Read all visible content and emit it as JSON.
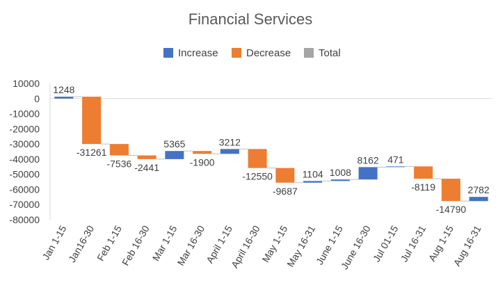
{
  "chart_data": {
    "type": "waterfall",
    "title": "Financial Services",
    "legend": [
      "Increase",
      "Decrease",
      "Total"
    ],
    "legend_position": "top",
    "colors": {
      "increase": "#4472C4",
      "decrease": "#ED7D31",
      "total": "#A5A5A5",
      "axis": "#D9D9D9",
      "text": "#404040",
      "title": "#595959"
    },
    "ylim": [
      -80000,
      10000
    ],
    "yticks": [
      10000,
      0,
      -10000,
      -20000,
      -30000,
      -40000,
      -50000,
      -60000,
      -70000,
      -80000
    ],
    "grid": false,
    "categories": [
      "Jan 1-15",
      "Jan16-30",
      "Feb 1-15",
      "Feb 16-30",
      "Mar 1-15",
      "Mar 16-30",
      "April 1-15",
      "April 16-30",
      "May 1-15",
      "May 16-31",
      "June 1-15",
      "June 16-30",
      "Jul 01-15",
      "Jul 16-31",
      "Aug 1-15",
      "Aug 16-31"
    ],
    "values": [
      1248,
      -31261,
      -7536,
      -2441,
      5365,
      -1900,
      3212,
      -12550,
      -9687,
      1104,
      1008,
      8162,
      471,
      -8119,
      -14790,
      2782
    ]
  }
}
